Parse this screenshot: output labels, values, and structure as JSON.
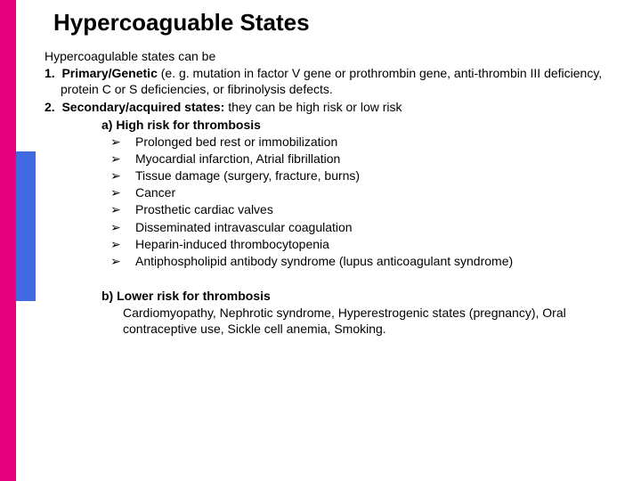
{
  "colors": {
    "stripe_magenta": "#e6007e",
    "stripe_blue": "#4169e1",
    "background": "#ffffff",
    "text": "#000000"
  },
  "title": "Hypercoaguable States",
  "intro": "Hypercoagulable states can be",
  "item1_num": "1.",
  "item1_bold": "Primary/Genetic",
  "item1_rest": " (e. g. mutation in factor V gene or prothrombin gene, anti-thrombin III deficiency, protein C or S deficiencies, or fibrinolysis defects.",
  "item2_num": "2.",
  "item2_bold": "Secondary/acquired states:",
  "item2_rest": " they can be high risk or low risk",
  "sub_a_label": "a)  High risk for thrombosis",
  "bullet_glyph": "➢",
  "high_risk_items": [
    "Prolonged bed rest or immobilization",
    "Myocardial infarction, Atrial fibrillation",
    "Tissue damage (surgery, fracture, burns)",
    "Cancer",
    "Prosthetic cardiac valves",
    "Disseminated intravascular coagulation",
    "Heparin-induced thrombocytopenia",
    "Antiphospholipid antibody syndrome (lupus anticoagulant syndrome)"
  ],
  "sub_b_label": "b)  Lower risk for thrombosis",
  "lower_risk_body": "Cardiomyopathy, Nephrotic syndrome, Hyperestrogenic states (pregnancy), Oral contraceptive use, Sickle cell anemia, Smoking."
}
